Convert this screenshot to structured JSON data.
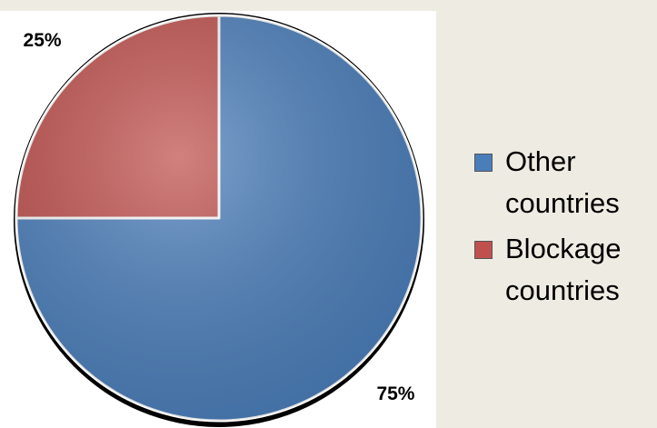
{
  "chart_data": {
    "type": "pie",
    "categories": [
      "Other countries",
      "Blockage countries"
    ],
    "values": [
      75,
      25
    ],
    "value_labels": [
      "75%",
      "25%"
    ],
    "colors": [
      "#4a7ebb",
      "#c0504d"
    ],
    "legend": "right"
  }
}
